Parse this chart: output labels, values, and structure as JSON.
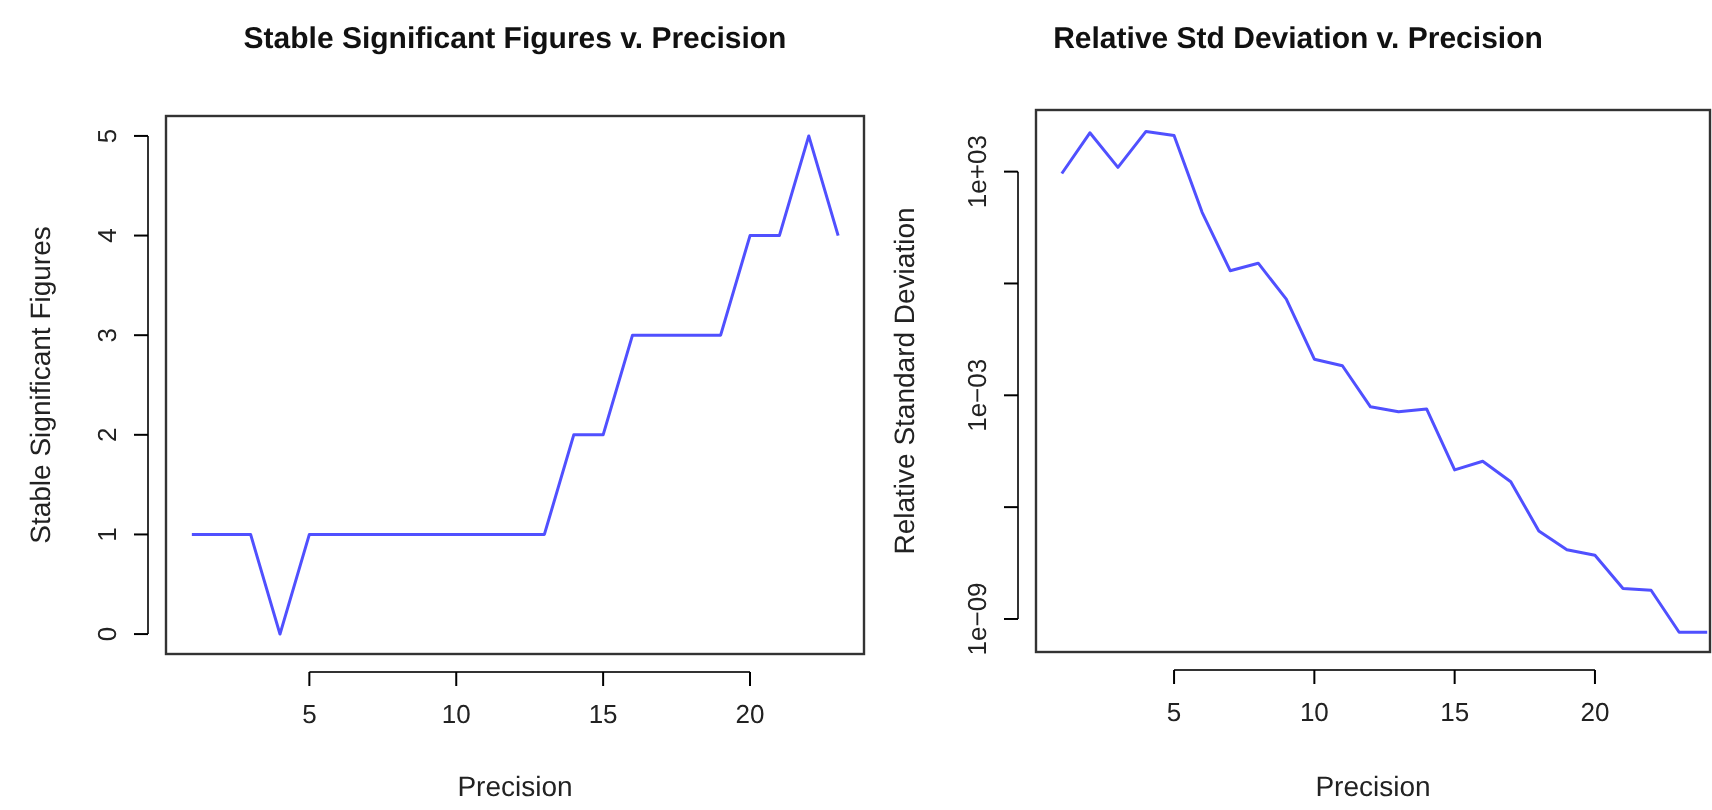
{
  "chart_data": [
    {
      "type": "line",
      "title": "Stable Significant Figures v. Precision",
      "xlabel": "Precision",
      "ylabel": "Stable Significant Figures",
      "x": [
        1,
        2,
        3,
        4,
        5,
        6,
        7,
        8,
        9,
        10,
        11,
        12,
        13,
        14,
        15,
        16,
        17,
        18,
        19,
        20,
        21,
        22,
        23
      ],
      "series": [
        {
          "color": "#5050ff",
          "values": [
            1,
            1,
            1,
            0,
            1,
            1,
            1,
            1,
            1,
            1,
            1,
            1,
            1,
            2,
            2,
            3,
            3,
            3,
            3,
            4,
            4,
            5,
            4
          ]
        }
      ],
      "xlim": [
        0.12,
        23.88
      ],
      "xticks": [
        5,
        10,
        15,
        20
      ],
      "ylim": [
        -0.2,
        5.2
      ],
      "yticks": [
        0,
        1,
        2,
        3,
        4,
        5
      ],
      "grid": false,
      "marker": "none",
      "line_style": "solid"
    },
    {
      "type": "line",
      "title": "Relative Std Deviation v. Precision",
      "xlabel": "Precision",
      "ylabel": "Relative Standard Deviation",
      "x": [
        1,
        2,
        3,
        4,
        5,
        6,
        7,
        8,
        9,
        10,
        11,
        12,
        13,
        14,
        15,
        16,
        17,
        18,
        19,
        20,
        21,
        22,
        23,
        24
      ],
      "series": [
        {
          "color": "#5050ff",
          "values": [
            890,
            11000,
            1300,
            12000,
            9300,
            81,
            2.2,
            3.5,
            0.38,
            0.0093,
            0.0062,
            0.00049,
            0.00036,
            0.00043,
            1e-05,
            1.7e-05,
            4.8e-06,
            2.3e-07,
            7.2e-08,
            5.1e-08,
            6.6e-09,
            5.9e-09,
            4.4e-10,
            4.4e-10
          ]
        }
      ],
      "log": "y",
      "xlim": [
        0.08,
        24.1
      ],
      "xticks": [
        5,
        10,
        15,
        20
      ],
      "ylim": [
        1.3e-10,
        45000
      ],
      "yticks": [
        {
          "value": 1000,
          "label": "1e+03"
        },
        {
          "value": 1,
          "label": null
        },
        {
          "value": 0.001,
          "label": "1e−03"
        },
        {
          "value": 1e-06,
          "label": null
        },
        {
          "value": 1e-09,
          "label": "1e−09"
        }
      ],
      "grid": false,
      "marker": "none",
      "line_style": "solid"
    }
  ]
}
